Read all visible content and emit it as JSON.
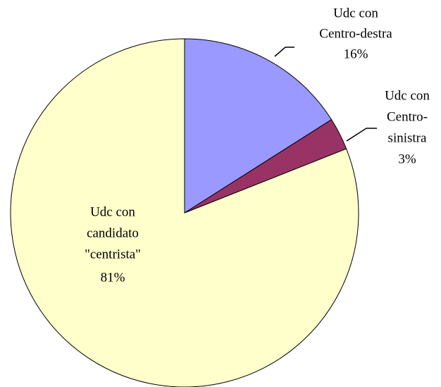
{
  "chart_data": {
    "type": "pie",
    "categories": [
      [
        "Udc con",
        "Centro-destra"
      ],
      [
        "Udc con",
        "Centro-",
        "sinistra"
      ],
      [
        "Udc con",
        "candidato",
        "\"centrista\""
      ]
    ],
    "values": [
      16,
      3,
      81
    ],
    "value_labels": [
      "16%",
      "3%",
      "81%"
    ],
    "colors": [
      "#9999ff",
      "#993366",
      "#ffffcc"
    ]
  }
}
